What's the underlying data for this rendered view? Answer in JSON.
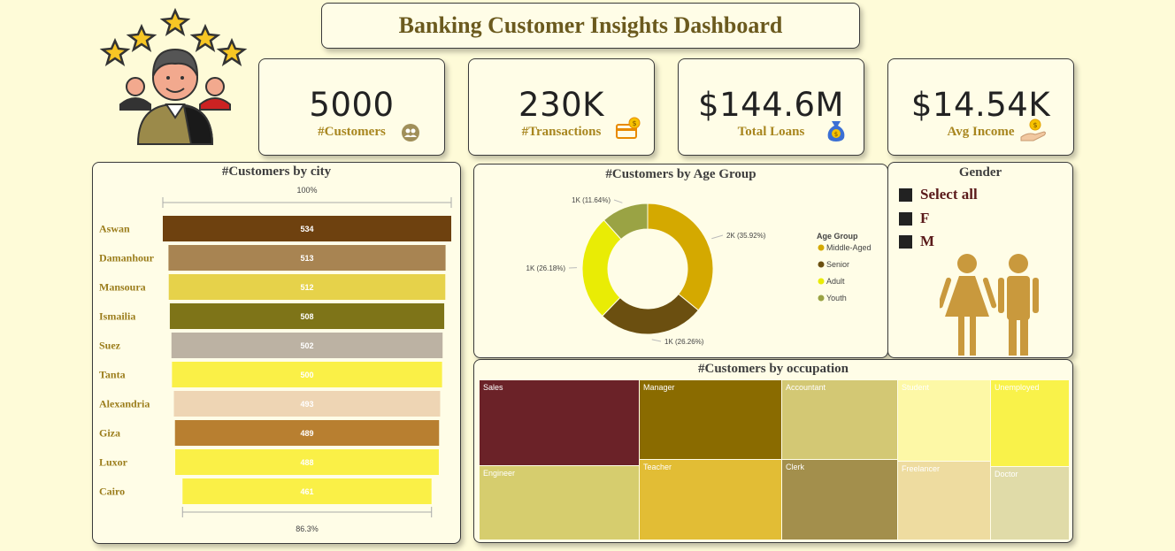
{
  "title": "Banking Customer Insights Dashboard",
  "kpis": [
    {
      "value": "5000",
      "label": "#Customers",
      "icon": "users-icon"
    },
    {
      "value": "230K",
      "label": "#Transactions",
      "icon": "credit-card-icon"
    },
    {
      "value": "$144.6M",
      "label": "Total Loans",
      "icon": "money-bag-icon"
    },
    {
      "value": "$14.54K",
      "label": "Avg Income",
      "icon": "hand-coin-icon"
    }
  ],
  "gender": {
    "title": "Gender",
    "options": [
      "Select all",
      "F",
      "M"
    ]
  },
  "chart_data": [
    {
      "type": "bar",
      "subtype": "funnel",
      "title": "#Customers by city",
      "top_label": "100%",
      "bottom_label": "86.3%",
      "categories": [
        "Aswan",
        "Damanhour",
        "Mansoura",
        "Ismailia",
        "Suez",
        "Tanta",
        "Alexandria",
        "Giza",
        "Luxor",
        "Cairo"
      ],
      "values": [
        534,
        513,
        512,
        508,
        502,
        500,
        493,
        489,
        488,
        461
      ],
      "colors": [
        "#6e410f",
        "#a88452",
        "#e6d24a",
        "#7e7418",
        "#bcb2a3",
        "#faf047",
        "#eed5b4",
        "#b87f30",
        "#faf047",
        "#faf047"
      ],
      "value_text_colors": [
        "#ffffff",
        "#ffffff",
        "#ffffff",
        "#ffffff",
        "#ffffff",
        "#ffffff",
        "#ffffff",
        "#ffffff",
        "#ffffff",
        "#ffffff"
      ]
    },
    {
      "type": "pie",
      "subtype": "donut",
      "title": "#Customers by Age Group",
      "legend_title": "Age Group",
      "categories": [
        "Middle-Aged",
        "Senior",
        "Adult",
        "Youth"
      ],
      "values": [
        35.92,
        26.26,
        26.18,
        11.64
      ],
      "data_labels": [
        "2K (35.92%)",
        "1K (26.26%)",
        "1K (26.18%)",
        "1K (11.64%)"
      ],
      "colors": [
        "#d4a900",
        "#6b4f10",
        "#e9ec05",
        "#9aa344"
      ],
      "legend_position": "right"
    },
    {
      "type": "treemap",
      "title": "#Customers by occupation",
      "categories": [
        "Sales",
        "Engineer",
        "Manager",
        "Teacher",
        "Accountant",
        "Clerk",
        "Student",
        "Freelancer",
        "Unemployed",
        "Doctor"
      ],
      "colors": [
        "#6b2228",
        "#d6cd6e",
        "#8a6b00",
        "#e2bd35",
        "#d3c874",
        "#a38f4c",
        "#fdf8a6",
        "#eedca0",
        "#f9f24a",
        "#e0dba8"
      ]
    }
  ]
}
